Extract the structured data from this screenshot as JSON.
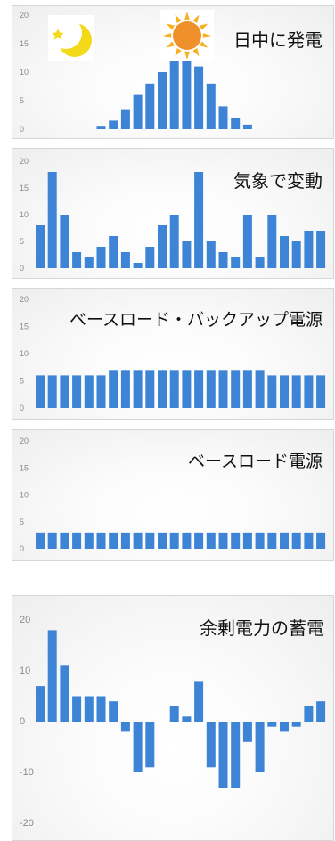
{
  "chart_data": [
    {
      "type": "bar",
      "title": "日中に発電",
      "yticks": [
        "20",
        "15",
        "10",
        "5",
        "0"
      ],
      "ylim": [
        0,
        20
      ],
      "values": [
        0,
        0,
        0,
        0,
        0,
        0.6,
        1.5,
        3.5,
        6,
        8,
        10,
        12,
        12,
        11,
        8,
        4,
        2,
        0.8,
        0,
        0,
        0,
        0,
        0,
        0
      ],
      "icons": [
        "moon-icon",
        "sun-icon"
      ]
    },
    {
      "type": "bar",
      "title": "気象で変動",
      "yticks": [
        "20",
        "15",
        "10",
        "5",
        "0"
      ],
      "ylim": [
        0,
        20
      ],
      "values": [
        8,
        18,
        10,
        3,
        2,
        4,
        6,
        3,
        1,
        4,
        8,
        10,
        5,
        18,
        5,
        3,
        2,
        10,
        2,
        10,
        6,
        5,
        7,
        7
      ]
    },
    {
      "type": "bar",
      "title": "ベースロード・バックアップ電源",
      "yticks": [
        "20",
        "15",
        "10",
        "5",
        "0"
      ],
      "ylim": [
        0,
        20
      ],
      "values": [
        6,
        6,
        6,
        6,
        6,
        6,
        7,
        7,
        7,
        7,
        7,
        7,
        7,
        7,
        7,
        7,
        7,
        7,
        7,
        6,
        6,
        6,
        6,
        6
      ]
    },
    {
      "type": "bar",
      "title": "ベースロード電源",
      "yticks": [
        "20",
        "15",
        "10",
        "5",
        "0"
      ],
      "ylim": [
        0,
        20
      ],
      "values": [
        3,
        3,
        3,
        3,
        3,
        3,
        3,
        3,
        3,
        3,
        3,
        3,
        3,
        3,
        3,
        3,
        3,
        3,
        3,
        3,
        3,
        3,
        3,
        3
      ]
    },
    {
      "type": "bar",
      "title": "余剰電力の蓄電",
      "yticks": [
        "20",
        "10",
        "0",
        "-10",
        "-20"
      ],
      "ylim": [
        -20,
        20
      ],
      "values": [
        7,
        18,
        11,
        5,
        5,
        5,
        4,
        -2,
        -10,
        -9,
        0,
        3,
        1,
        8,
        -9,
        -13,
        -13,
        -4,
        -10,
        -1,
        -2,
        -1,
        3,
        4
      ]
    }
  ],
  "colors": {
    "bar": "#3d84d6",
    "sun": "#f0902a",
    "moon": "#f4d81a"
  }
}
